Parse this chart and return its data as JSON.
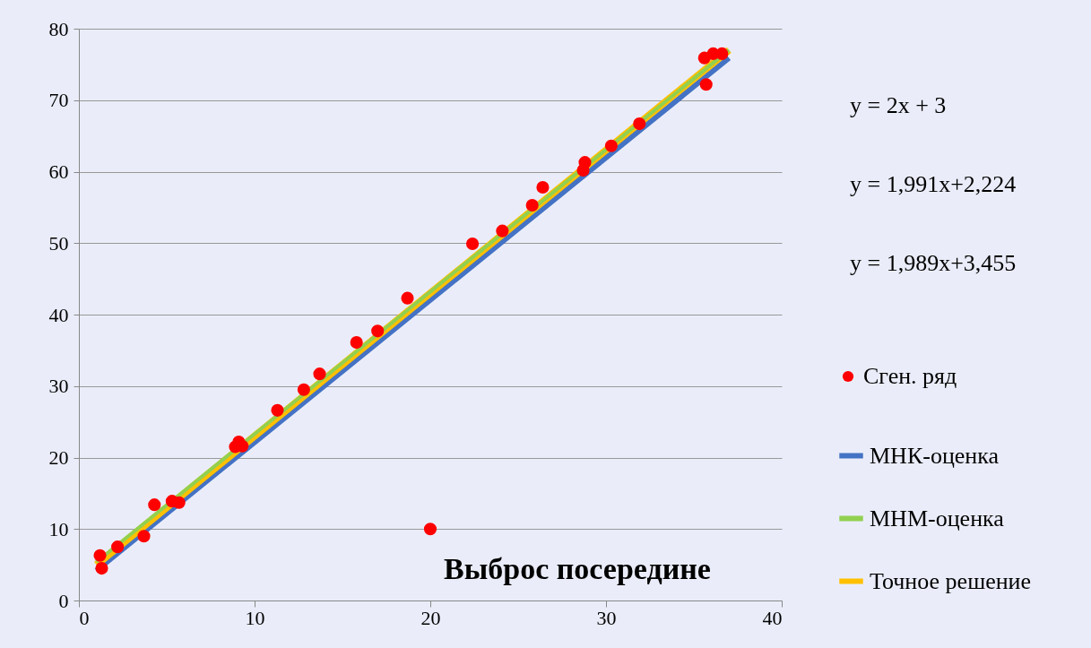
{
  "chart_data": {
    "type": "scatter",
    "xlim": [
      0,
      40
    ],
    "ylim": [
      0,
      80
    ],
    "xticks": [
      0,
      10,
      20,
      30,
      40
    ],
    "yticks": [
      0,
      10,
      20,
      30,
      40,
      50,
      60,
      70,
      80
    ],
    "grid": "y",
    "legend": "right",
    "annotations": [
      "y = 2x + 3",
      "y = 1,991x+2,224",
      "y = 1,989x+3,455",
      "Выброс посередине"
    ],
    "series": [
      {
        "name": "Сген. ряд",
        "marker": "circle",
        "color": "#ff0000",
        "x": [
          1.2,
          1.3,
          2.2,
          3.7,
          4.3,
          5.3,
          5.7,
          8.9,
          9.1,
          9.3,
          11.3,
          12.8,
          13.7,
          15.8,
          17.0,
          18.7,
          20.0,
          22.4,
          24.1,
          25.8,
          26.4,
          28.7,
          28.8,
          30.3,
          31.9,
          35.6,
          35.7,
          36.1,
          36.6
        ],
        "values": [
          6.3,
          4.5,
          7.5,
          9.0,
          13.4,
          13.9,
          13.7,
          21.5,
          22.2,
          21.6,
          26.6,
          29.5,
          31.7,
          36.1,
          37.7,
          42.3,
          10.0,
          49.9,
          51.7,
          55.3,
          57.8,
          60.2,
          61.3,
          63.6,
          66.7,
          75.9,
          72.2,
          76.5,
          76.5
        ]
      },
      {
        "name": "МНК-оценка",
        "type": "line",
        "color": "#4472c4",
        "x": [
          1,
          37
        ],
        "values": [
          4.2,
          75.9
        ]
      },
      {
        "name": "МНМ-оценка",
        "type": "line",
        "color": "#92d050",
        "x": [
          1,
          37
        ],
        "values": [
          5.4,
          77.0
        ]
      },
      {
        "name": "Точное решение",
        "type": "line",
        "color": "#ffc000",
        "x": [
          1,
          37
        ],
        "values": [
          5,
          77
        ]
      }
    ]
  }
}
